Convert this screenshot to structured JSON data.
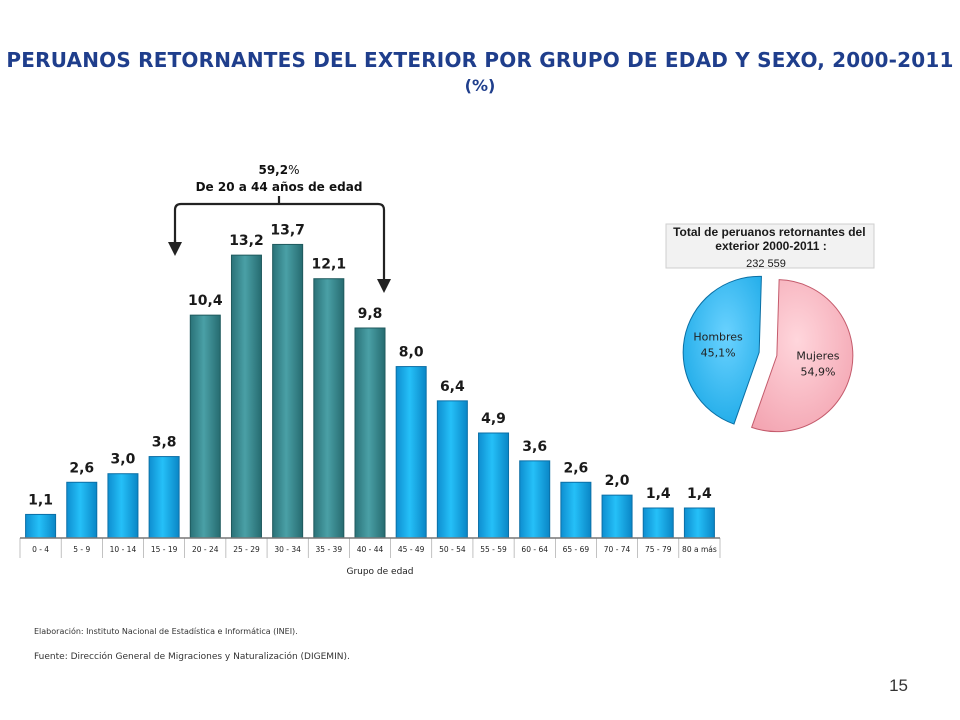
{
  "title": "PERUANOS RETORNANTES DEL EXTERIOR POR GRUPO DE EDAD Y SEXO, 2000-2011",
  "subtitle": "(%)",
  "annotation": {
    "value": "59,2",
    "suffix": "%",
    "text": "De 20 a 44 años de edad"
  },
  "chart_data": [
    {
      "type": "bar",
      "xlabel": "Grupo de edad",
      "ylabel": "",
      "ylim": [
        0,
        14
      ],
      "grid": false,
      "categories": [
        "0 - 4",
        "5 - 9",
        "10 - 14",
        "15 - 19",
        "20 - 24",
        "25 - 29",
        "30 - 34",
        "35 - 39",
        "40 - 44",
        "45 - 49",
        "50 - 54",
        "55 - 59",
        "60 - 64",
        "65 - 69",
        "70 - 74",
        "75 - 79",
        "80 a más"
      ],
      "values": [
        1.1,
        2.6,
        3.0,
        3.8,
        10.4,
        13.2,
        13.7,
        12.1,
        9.8,
        8.0,
        6.4,
        4.9,
        3.6,
        2.6,
        2.0,
        1.4,
        1.4
      ],
      "value_labels": [
        "1,1",
        "2,6",
        "3,0",
        "3,8",
        "10,4",
        "13,2",
        "13,7",
        "12,1",
        "9,8",
        "8,0",
        "6,4",
        "4,9",
        "3,6",
        "2,6",
        "2,0",
        "1,4",
        "1,4"
      ],
      "highlight_range": [
        "20 - 24",
        "40 - 44"
      ],
      "colors": {
        "normal": "#19b4f0",
        "highlight": "#3a8f94",
        "axis": "#666666"
      }
    },
    {
      "type": "pie",
      "title": "Total de peruanos retornantes del exterior 2000-2011 :",
      "total": "232 559",
      "slices": [
        {
          "label": "Mujeres",
          "value": 54.9,
          "value_label": "54,9%",
          "color": "#f9b8c3"
        },
        {
          "label": "Hombres",
          "value": 45.1,
          "value_label": "45,1%",
          "color": "#32b8f0"
        }
      ]
    }
  ],
  "footer": {
    "credit": "Elaboración: Instituto Nacional de Estadística e Informática (INEI).",
    "source": "Fuente: Dirección General de Migraciones y Naturalización (DIGEMIN).",
    "page_number": "15"
  }
}
